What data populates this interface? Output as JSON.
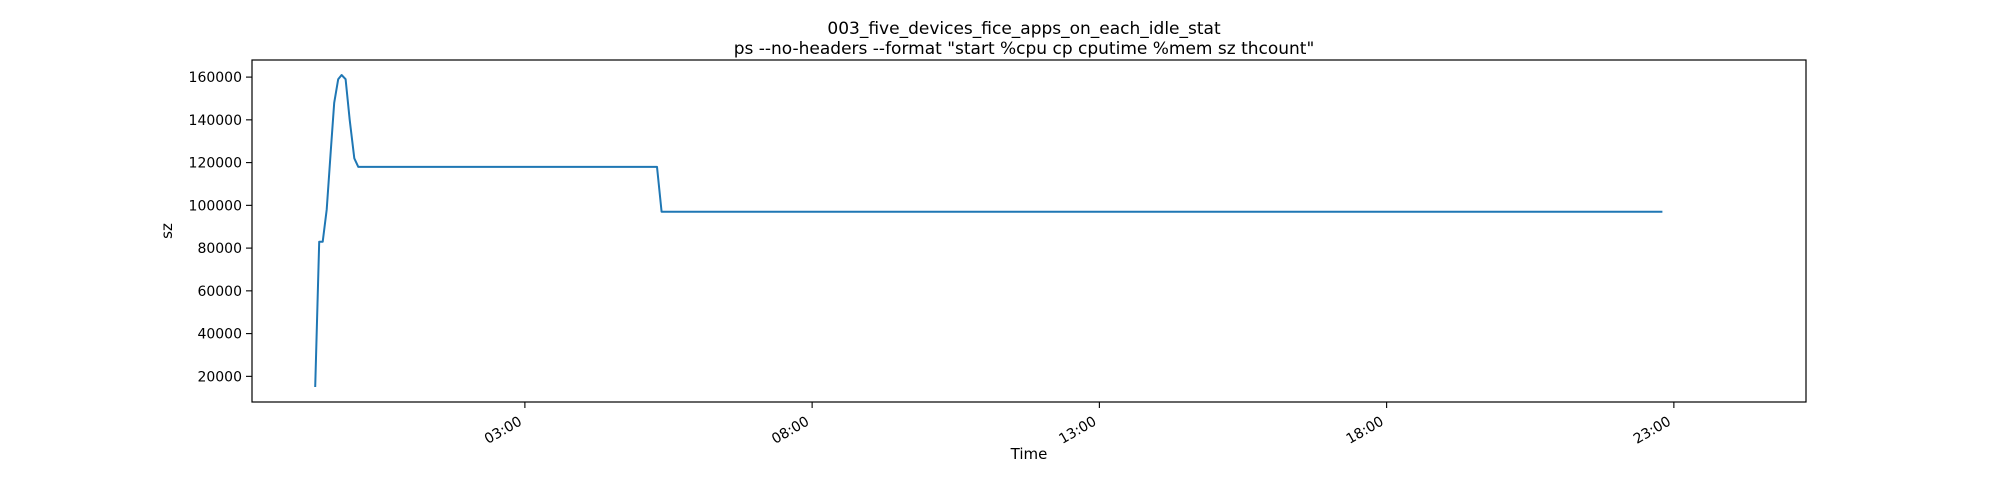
{
  "chart_data": {
    "type": "line",
    "title": "003_five_devices_fice_apps_on_each_idle_stat",
    "subtitle": "ps --no-headers --format \"start %cpu cp cputime %mem sz thcount\"",
    "xlabel": "Time",
    "ylabel": "sz",
    "x_unit": "hours",
    "xlim": [
      -1.75,
      25.3
    ],
    "ylim": [
      8000,
      168000
    ],
    "x_ticks": [
      {
        "value": 3,
        "label": "03:00"
      },
      {
        "value": 8,
        "label": "08:00"
      },
      {
        "value": 13,
        "label": "13:00"
      },
      {
        "value": 18,
        "label": "18:00"
      },
      {
        "value": 23,
        "label": "23:00"
      }
    ],
    "y_ticks": [
      {
        "value": 20000,
        "label": "20000"
      },
      {
        "value": 40000,
        "label": "40000"
      },
      {
        "value": 60000,
        "label": "60000"
      },
      {
        "value": 80000,
        "label": "80000"
      },
      {
        "value": 100000,
        "label": "100000"
      },
      {
        "value": 120000,
        "label": "120000"
      },
      {
        "value": 140000,
        "label": "140000"
      },
      {
        "value": 160000,
        "label": "160000"
      }
    ],
    "grid": false,
    "series": [
      {
        "color": "#1f77b4",
        "points": [
          [
            -0.65,
            15000
          ],
          [
            -0.58,
            83000
          ],
          [
            -0.52,
            83000
          ],
          [
            -0.45,
            98000
          ],
          [
            -0.38,
            125000
          ],
          [
            -0.32,
            148000
          ],
          [
            -0.25,
            159000
          ],
          [
            -0.19,
            161000
          ],
          [
            -0.12,
            159000
          ],
          [
            -0.05,
            140000
          ],
          [
            0.03,
            122000
          ],
          [
            0.1,
            118000
          ],
          [
            0.2,
            118000
          ],
          [
            5.3,
            118000
          ],
          [
            5.38,
            97000
          ],
          [
            6.0,
            97000
          ],
          [
            10.0,
            97000
          ],
          [
            15.0,
            97000
          ],
          [
            20.0,
            97000
          ],
          [
            22.8,
            97000
          ]
        ]
      }
    ]
  }
}
